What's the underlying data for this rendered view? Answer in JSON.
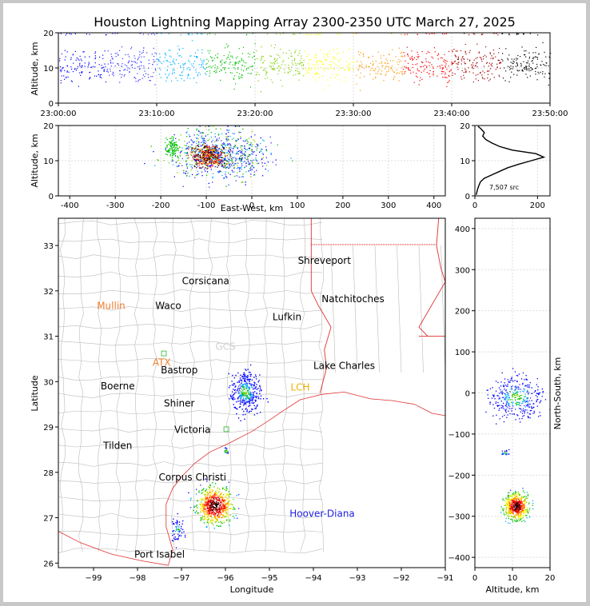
{
  "title": "Houston Lightning Mapping Array 2300-2350 UTC March 27, 2025",
  "chart_data": [
    {
      "id": "time-height",
      "type": "scatter",
      "xlabel": "",
      "ylabel": "Altitude, km",
      "x_tick_labels": [
        "23:00:00",
        "23:10:00",
        "23:20:00",
        "23:30:00",
        "23:40:00",
        "23:50:00"
      ],
      "xlim": [
        "23:00:00",
        "23:50:00"
      ],
      "ylim": [
        0,
        20
      ],
      "y_ticks": [
        0,
        10,
        20
      ],
      "grid": true,
      "description_of_points": "VHF source altitudes vs time, mostly 5-17 km, clustered near 10-12 km"
    },
    {
      "id": "east-west-altitude",
      "type": "scatter",
      "xlabel": "East-West, km",
      "ylabel": "Altitude, km",
      "xlim": [
        -425,
        425
      ],
      "ylim": [
        0,
        20
      ],
      "x_ticks": [
        -400,
        -300,
        -200,
        -100,
        0,
        100,
        200,
        300,
        400
      ],
      "y_ticks": [
        0,
        10,
        20
      ],
      "grid": true,
      "clusters": [
        {
          "x_center": -90,
          "alt_center": 11,
          "note": "dense core, -130 to -20 km"
        },
        {
          "x_center": -175,
          "alt_center": 14,
          "note": "small cluster"
        }
      ]
    },
    {
      "id": "altitude-histogram",
      "type": "line",
      "xlim": [
        0,
        240
      ],
      "ylim": [
        0,
        20
      ],
      "x_ticks": [
        0,
        200
      ],
      "y_ticks": [
        0,
        10,
        20
      ],
      "annotation": "7,507 src",
      "profile": [
        {
          "alt": 0.3,
          "count": 4
        },
        {
          "alt": 1,
          "count": 6
        },
        {
          "alt": 2,
          "count": 9
        },
        {
          "alt": 3,
          "count": 13
        },
        {
          "alt": 4,
          "count": 18
        },
        {
          "alt": 5,
          "count": 30
        },
        {
          "alt": 6,
          "count": 55
        },
        {
          "alt": 7,
          "count": 80
        },
        {
          "alt": 8,
          "count": 105
        },
        {
          "alt": 9,
          "count": 140
        },
        {
          "alt": 10,
          "count": 180
        },
        {
          "alt": 11,
          "count": 220
        },
        {
          "alt": 12,
          "count": 195
        },
        {
          "alt": 13,
          "count": 120
        },
        {
          "alt": 14,
          "count": 80
        },
        {
          "alt": 15,
          "count": 55
        },
        {
          "alt": 16,
          "count": 35
        },
        {
          "alt": 17,
          "count": 25
        },
        {
          "alt": 18,
          "count": 30
        },
        {
          "alt": 19,
          "count": 20
        },
        {
          "alt": 19.8,
          "count": 10
        }
      ]
    },
    {
      "id": "plan-view",
      "type": "scatter",
      "xlabel": "Longitude",
      "ylabel": "Latitude",
      "xlim": [
        -99.8,
        -91
      ],
      "ylim": [
        25.9,
        33.6
      ],
      "x_ticks": [
        -99,
        -98,
        -97,
        -96,
        -95,
        -94,
        -93,
        -92,
        -91
      ],
      "y_ticks": [
        26,
        27,
        28,
        29,
        30,
        31,
        32,
        33
      ],
      "clusters": [
        {
          "lon": -96.2,
          "lat": 27.25,
          "note": "dense storm offshore Corpus Christi"
        },
        {
          "lon": -95.6,
          "lat": 29.8,
          "note": "scattered sources near Houston"
        },
        {
          "lon": -97.1,
          "lat": 26.75,
          "note": "small cluster"
        },
        {
          "lon": -96.0,
          "lat": 28.48,
          "note": "small cluster"
        }
      ],
      "cities": [
        {
          "name": "Shreveport",
          "lon": -93.75,
          "lat": 32.6,
          "color": "#000000"
        },
        {
          "name": "Corsicana",
          "lon": -96.45,
          "lat": 32.15,
          "color": "#000000"
        },
        {
          "name": "Natchitoches",
          "lon": -93.1,
          "lat": 31.75,
          "color": "#000000"
        },
        {
          "name": "Mullin",
          "lon": -98.6,
          "lat": 31.6,
          "color": "#f08030"
        },
        {
          "name": "Waco",
          "lon": -97.3,
          "lat": 31.6,
          "color": "#000000"
        },
        {
          "name": "Lufkin",
          "lon": -94.6,
          "lat": 31.35,
          "color": "#000000"
        },
        {
          "name": "GCS",
          "lon": -96.0,
          "lat": 30.7,
          "color": "#d0d0d0"
        },
        {
          "name": "ATX",
          "lon": -97.45,
          "lat": 30.35,
          "color": "#f08030"
        },
        {
          "name": "Bastrop",
          "lon": -97.05,
          "lat": 30.18,
          "color": "#000000"
        },
        {
          "name": "Lake Charles",
          "lon": -93.3,
          "lat": 30.28,
          "color": "#000000"
        },
        {
          "name": "Boerne",
          "lon": -98.45,
          "lat": 29.83,
          "color": "#000000"
        },
        {
          "name": "LCH",
          "lon": -94.3,
          "lat": 29.8,
          "color": "#f0b000"
        },
        {
          "name": "Shiner",
          "lon": -97.05,
          "lat": 29.45,
          "color": "#000000"
        },
        {
          "name": "Victoria",
          "lon": -96.75,
          "lat": 28.87,
          "color": "#000000"
        },
        {
          "name": "Tilden",
          "lon": -98.45,
          "lat": 28.52,
          "color": "#000000"
        },
        {
          "name": "Corpus Christi",
          "lon": -96.75,
          "lat": 27.82,
          "color": "#000000"
        },
        {
          "name": "Hoover-Diana",
          "lon": -93.8,
          "lat": 27.02,
          "color": "#2020e0"
        },
        {
          "name": "Port Isabel",
          "lon": -97.5,
          "lat": 26.12,
          "color": "#000000"
        }
      ]
    },
    {
      "id": "altitude-north-south",
      "type": "scatter",
      "xlabel": "Altitude, km",
      "ylabel": "North-South, km",
      "xlim": [
        0,
        20
      ],
      "ylim": [
        -425,
        425
      ],
      "x_ticks": [
        0,
        10,
        20
      ],
      "y_ticks": [
        -400,
        -300,
        -200,
        -100,
        0,
        100,
        200,
        300,
        400
      ],
      "grid": true,
      "clusters": [
        {
          "alt_center": 11,
          "ns_center": -275,
          "note": "dense core"
        },
        {
          "alt_center": 11,
          "ns_center": -10,
          "note": "scattered"
        },
        {
          "alt_center": 8,
          "ns_center": -145,
          "note": "small"
        }
      ]
    }
  ]
}
